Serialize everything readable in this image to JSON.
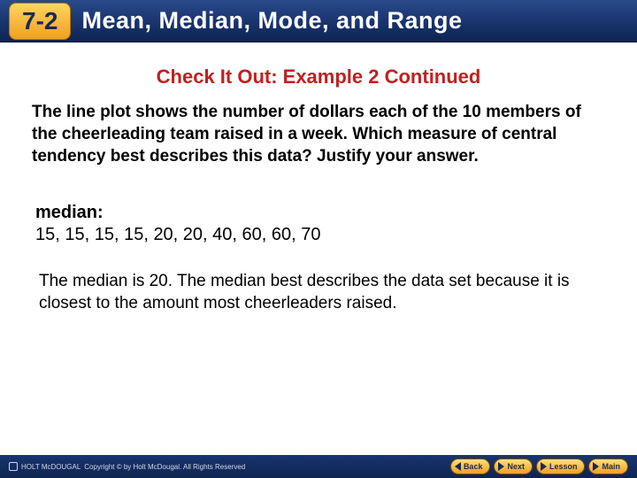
{
  "header": {
    "section_number": "7-2",
    "title": "Mean, Median, Mode, and Range"
  },
  "subtitle": "Check It Out: Example 2 Continued",
  "prompt": "The line plot shows the number of dollars each of the 10 members of the cheerleading team raised in a week. Which measure of central tendency best describes this data? Justify your answer.",
  "median": {
    "label": "median:",
    "values": "15, 15, 15, 15, 20, 20, 40, 60, 60, 70"
  },
  "conclusion": "The median is 20. The median best describes the data set because it is closest to the amount most cheerleaders raised.",
  "footer": {
    "publisher": "HOLT McDOUGAL",
    "copyright": "Copyright © by Holt McDougal. All Rights Reserved",
    "nav": {
      "back": "Back",
      "next": "Next",
      "lesson": "Lesson",
      "main": "Main"
    }
  },
  "colors": {
    "header_gradient_top": "#2a4a8a",
    "header_gradient_bottom": "#0e2450",
    "badge_gradient_top": "#ffd460",
    "badge_gradient_bottom": "#f0a020",
    "subtitle_color": "#c02020",
    "text_color": "#000000",
    "footer_text": "#d0d8e8"
  }
}
